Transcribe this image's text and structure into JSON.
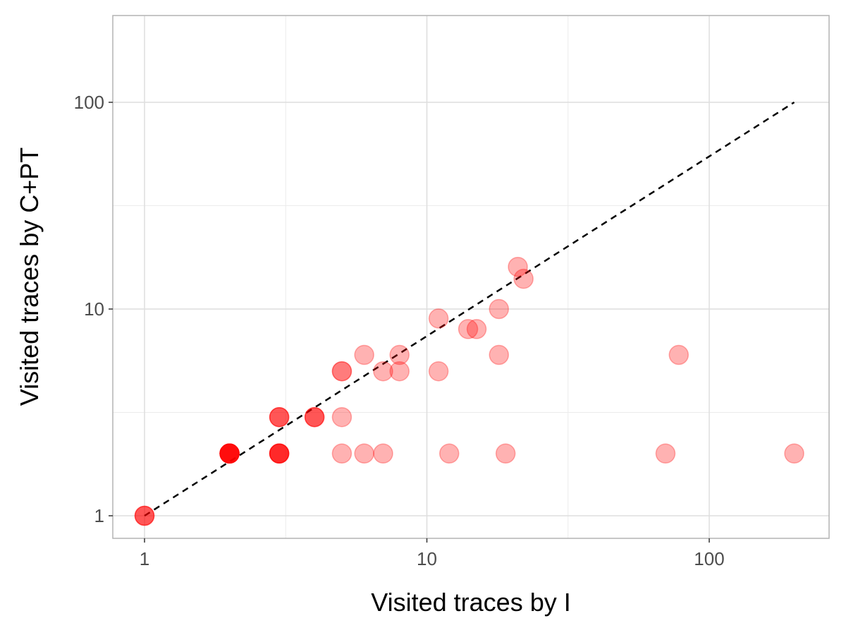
{
  "chart_data": {
    "type": "scatter",
    "title": "",
    "xlabel": "Visited traces by I",
    "ylabel": "Visited traces by C+PT",
    "x_scale": "log10",
    "y_scale": "log10",
    "xlim": [
      0.8,
      250
    ],
    "ylim": [
      0.8,
      250
    ],
    "x_ticks": [
      {
        "value": 1,
        "label": "1"
      },
      {
        "value": 10,
        "label": "10"
      },
      {
        "value": 100,
        "label": "100"
      }
    ],
    "y_ticks": [
      {
        "value": 1,
        "label": "1"
      },
      {
        "value": 10,
        "label": "10"
      },
      {
        "value": 100,
        "label": "100"
      }
    ],
    "grid": true,
    "point_color": "#ff0000",
    "point_alpha": 0.3,
    "reference_line": {
      "from": [
        1,
        1
      ],
      "to": [
        200,
        100
      ],
      "style": "dashed",
      "color": "#000000"
    },
    "points": [
      {
        "x": 1,
        "y": 1
      },
      {
        "x": 1,
        "y": 1
      },
      {
        "x": 1,
        "y": 1
      },
      {
        "x": 2,
        "y": 2
      },
      {
        "x": 2,
        "y": 2
      },
      {
        "x": 2,
        "y": 2
      },
      {
        "x": 2,
        "y": 2
      },
      {
        "x": 2,
        "y": 2
      },
      {
        "x": 2,
        "y": 2
      },
      {
        "x": 2,
        "y": 2
      },
      {
        "x": 2,
        "y": 2
      },
      {
        "x": 3,
        "y": 2
      },
      {
        "x": 3,
        "y": 2
      },
      {
        "x": 3,
        "y": 2
      },
      {
        "x": 3,
        "y": 2
      },
      {
        "x": 3,
        "y": 2
      },
      {
        "x": 3,
        "y": 3
      },
      {
        "x": 3,
        "y": 3
      },
      {
        "x": 3,
        "y": 3
      },
      {
        "x": 4,
        "y": 3
      },
      {
        "x": 4,
        "y": 3
      },
      {
        "x": 4,
        "y": 3
      },
      {
        "x": 5,
        "y": 5
      },
      {
        "x": 5,
        "y": 5
      },
      {
        "x": 5,
        "y": 3
      },
      {
        "x": 5,
        "y": 2
      },
      {
        "x": 6,
        "y": 6
      },
      {
        "x": 6,
        "y": 2
      },
      {
        "x": 7,
        "y": 5
      },
      {
        "x": 7,
        "y": 2
      },
      {
        "x": 8,
        "y": 6
      },
      {
        "x": 8,
        "y": 5
      },
      {
        "x": 11,
        "y": 9
      },
      {
        "x": 11,
        "y": 5
      },
      {
        "x": 12,
        "y": 2
      },
      {
        "x": 14,
        "y": 8
      },
      {
        "x": 15,
        "y": 8
      },
      {
        "x": 18,
        "y": 10
      },
      {
        "x": 18,
        "y": 6
      },
      {
        "x": 19,
        "y": 2
      },
      {
        "x": 21,
        "y": 16
      },
      {
        "x": 22,
        "y": 14
      },
      {
        "x": 70,
        "y": 2
      },
      {
        "x": 78,
        "y": 6
      },
      {
        "x": 200,
        "y": 2
      }
    ]
  }
}
